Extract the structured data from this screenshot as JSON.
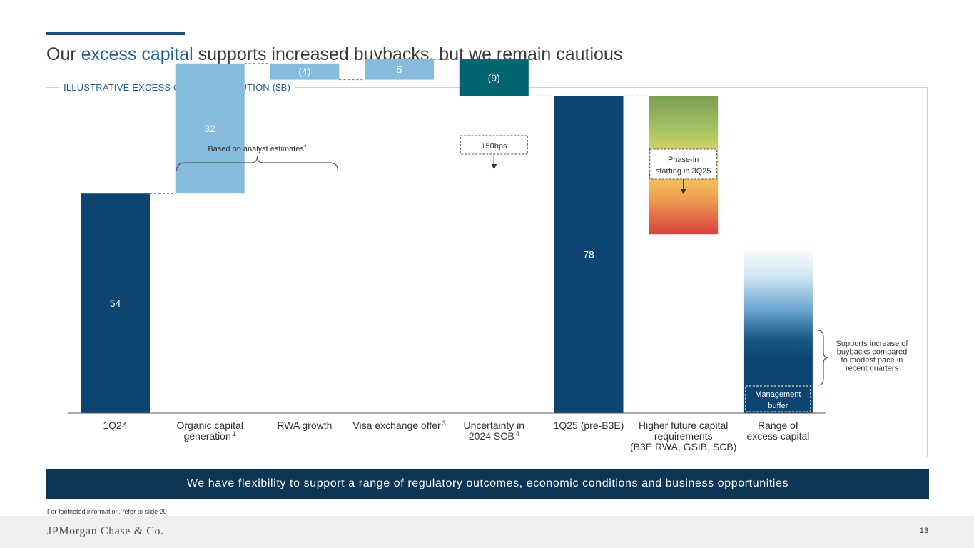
{
  "page": {
    "title_prefix": "Our ",
    "title_highlight": "excess capital",
    "title_suffix": " supports increased buybacks, but we remain cautious",
    "panel_label": "ILLUSTRATIVE EXCESS CAPITAL EVOLUTION ($B)",
    "banner": "We have flexibility to support a range of regulatory outcomes, economic conditions and business opportunities",
    "footnote": "For footnoted information, refer to slide 20",
    "logo": "JPMorgan Chase & Co.",
    "page_number": "13"
  },
  "chart_data": {
    "type": "waterfall",
    "title": "ILLUSTRATIVE EXCESS CAPITAL EVOLUTION ($B)",
    "unit": "$B",
    "ylim": [
      0,
      100
    ],
    "grid": false,
    "bars": [
      {
        "label": "1Q24",
        "kind": "total",
        "value": 54,
        "display": "54",
        "color": "#0d4570",
        "text_color": "#ffffff"
      },
      {
        "label": "Organic capital\ngeneration",
        "footnote": "1",
        "kind": "change",
        "value": 32,
        "display": "32",
        "color": "#86bbdd",
        "text_color": "#ffffff"
      },
      {
        "label": "RWA growth",
        "kind": "change",
        "value": -4,
        "display": "(4)",
        "color": "#86bbdd",
        "text_color": "#ffffff"
      },
      {
        "label": "Visa exchange offer",
        "footnote": "3",
        "kind": "change",
        "value": 5,
        "display": "5",
        "color": "#86bbdd",
        "text_color": "#ffffff"
      },
      {
        "label": "Uncertainty in\n2024 SCB",
        "footnote": "4",
        "kind": "change",
        "value": -9,
        "display": "(9)",
        "color": "#006570",
        "text_color": "#ffffff"
      },
      {
        "label": "1Q25 (pre-B3E)",
        "kind": "total",
        "value": 78,
        "display": "78",
        "color": "#0d4570",
        "text_color": "#ffffff"
      },
      {
        "label": "Higher future capital\nrequirements\n(B3E RWA, GSIB, SCB)",
        "kind": "range",
        "value_from": 78,
        "value_to": 44,
        "display": ""
      },
      {
        "label": "Range of\nexcess capital",
        "kind": "range",
        "value_from": 41,
        "value_to": 0,
        "display": ""
      }
    ],
    "annotations": {
      "analyst_brace": "Based on analyst estimates",
      "analyst_brace_footnote": "2",
      "scb_box": "+50bps",
      "phase_in_box": "Phase-in\nstarting in 3Q25",
      "management_buffer": "Management\nbuffer",
      "supports_note": "Supports increase of\nbuybacks compared\nto modest pace in\nrecent quarters"
    }
  }
}
